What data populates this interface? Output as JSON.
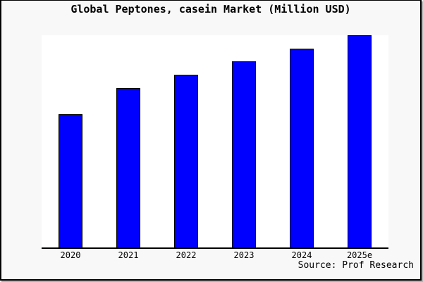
{
  "window": {
    "background_color": "#f8f8f8",
    "frame_color": "#000000",
    "shadow_color": "#b2b2b2"
  },
  "chart": {
    "title": "Global Peptones, casein Market (Million USD)",
    "source_credit": "Source: Prof Research",
    "plot_background": "#ffffff",
    "bar_fill_color": "#0000ff",
    "bar_edge_color": "#000000",
    "axis_line_color": "#000000",
    "text_color": "#000000"
  },
  "chart_data": {
    "type": "bar",
    "title": "Global Peptones, casein Market (Million USD)",
    "categories": [
      "2020",
      "2021",
      "2022",
      "2023",
      "2024",
      "2025e"
    ],
    "values": [
      62.9,
      75.1,
      81.5,
      87.7,
      93.7,
      100
    ],
    "values_note": "No y-axis scale or data labels are shown in the image; values are bar heights relative to the tallest bar (2025e = 100).",
    "unit_hint_from_title": "Million USD",
    "xlabel": "",
    "ylabel": "",
    "y_axis_ticks": "none",
    "x_axis": "bottom spine only, no tick marks",
    "grid": false,
    "legend": "none",
    "bar_color": "#0000ff",
    "annotation": "Source: Prof Research"
  }
}
